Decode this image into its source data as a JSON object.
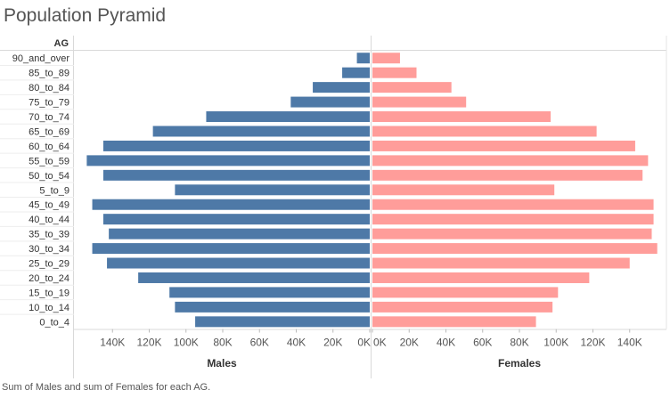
{
  "title": "Population Pyramid",
  "caption": "Sum of Males and sum of Females for each AG.",
  "chart_data": {
    "type": "bar",
    "orientation": "horizontal-pyramid",
    "row_header": "AG",
    "categories": [
      "90_and_over",
      "85_to_89",
      "80_to_84",
      "75_to_79",
      "70_to_74",
      "65_to_69",
      "60_to_64",
      "55_to_59",
      "50_to_54",
      "5_to_9",
      "45_to_49",
      "40_to_44",
      "35_to_39",
      "30_to_34",
      "25_to_29",
      "20_to_24",
      "15_to_19",
      "10_to_14",
      "0_to_4"
    ],
    "series": [
      {
        "name": "Males",
        "color": "#4e79a7",
        "values": [
          7000,
          15000,
          31000,
          43000,
          89000,
          118000,
          145000,
          154000,
          145000,
          106000,
          151000,
          145000,
          142000,
          151000,
          143000,
          126000,
          109000,
          106000,
          95000
        ]
      },
      {
        "name": "Females",
        "color": "#ff9d9a",
        "values": [
          15000,
          24000,
          43000,
          51000,
          97000,
          122000,
          143000,
          150000,
          147000,
          99000,
          153000,
          153000,
          152000,
          155000,
          140000,
          118000,
          101000,
          98000,
          89000
        ]
      }
    ],
    "males_axis": {
      "label": "Males",
      "ticks": [
        "140K",
        "120K",
        "100K",
        "80K",
        "60K",
        "40K",
        "20K",
        "0K"
      ],
      "tick_values": [
        140000,
        120000,
        100000,
        80000,
        60000,
        40000,
        20000,
        0
      ]
    },
    "females_axis": {
      "label": "Females",
      "ticks": [
        "0K",
        "20K",
        "40K",
        "60K",
        "80K",
        "100K",
        "120K",
        "140K"
      ],
      "tick_values": [
        0,
        20000,
        40000,
        60000,
        80000,
        100000,
        120000,
        140000
      ]
    },
    "xlim": [
      0,
      160000
    ],
    "gridlines": true
  }
}
